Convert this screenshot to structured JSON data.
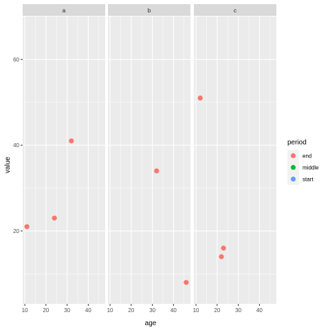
{
  "chart_data": {
    "type": "scatter",
    "xlabel": "age",
    "ylabel": "value",
    "xlim": [
      9,
      48
    ],
    "ylim": [
      3,
      70
    ],
    "x_ticks": [
      10,
      20,
      30,
      40
    ],
    "x_tick_labels": [
      "10",
      "20",
      "30",
      "40"
    ],
    "y_ticks": [
      20,
      40,
      60
    ],
    "y_tick_labels": [
      "20",
      "40",
      "60"
    ],
    "grid": true,
    "panel_background": "#ebebeb",
    "strip_background": "#d9d9d9",
    "facets": [
      {
        "label": "a",
        "points": [
          {
            "x": 11,
            "y": 21,
            "period": "end"
          },
          {
            "x": 24,
            "y": 23,
            "period": "end"
          },
          {
            "x": 32,
            "y": 41,
            "period": "end"
          }
        ]
      },
      {
        "label": "b",
        "points": [
          {
            "x": 32,
            "y": 34,
            "period": "end"
          },
          {
            "x": 46,
            "y": 8,
            "period": "end"
          }
        ]
      },
      {
        "label": "c",
        "points": [
          {
            "x": 12,
            "y": 51,
            "period": "end"
          },
          {
            "x": 22,
            "y": 14,
            "period": "end"
          },
          {
            "x": 23,
            "y": 16,
            "period": "end"
          }
        ]
      }
    ],
    "legend": {
      "title": "period",
      "placement": "right",
      "items": [
        {
          "label": "end",
          "color": "#F8766D"
        },
        {
          "label": "middle",
          "color": "#00BA38"
        },
        {
          "label": "start",
          "color": "#619CFF"
        }
      ]
    }
  }
}
